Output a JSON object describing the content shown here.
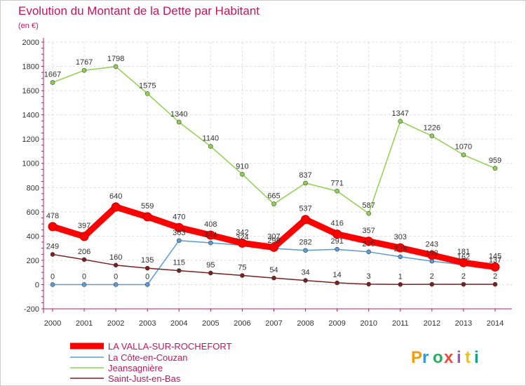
{
  "chart_data": {
    "type": "line",
    "title": "Evolution du Montant de la Dette par Habitant",
    "subtitle": "(en €)",
    "x": [
      "2000",
      "2001",
      "2002",
      "2003",
      "2004",
      "2005",
      "2006",
      "2007",
      "2008",
      "2009",
      "2010",
      "2011",
      "2012",
      "2013",
      "2014"
    ],
    "yticks": [
      "-200",
      "0",
      "200",
      "400",
      "600",
      "800",
      "1000",
      "1200",
      "1400",
      "1600",
      "1800",
      "2000"
    ],
    "ylim": [
      -200,
      2000
    ],
    "grid": true,
    "legend_position": "bottom-left",
    "series": [
      {
        "name": "LA VALLA-SUR-ROCHEFORT",
        "color": "#ff0000",
        "values": [
          478,
          397,
          640,
          559,
          470,
          408,
          342,
          307,
          537,
          416,
          357,
          303,
          243,
          181,
          145
        ]
      },
      {
        "name": "La Côte-en-Couzan",
        "color": "#5b9bd5",
        "values": [
          0,
          0,
          0,
          0,
          363,
          344,
          324,
          298,
          282,
          291,
          270,
          229,
          193,
          162,
          137
        ]
      },
      {
        "name": "Jeansagnière",
        "color": "#8fd14f",
        "values": [
          1667,
          1767,
          1798,
          1575,
          1340,
          1140,
          910,
          665,
          837,
          771,
          587,
          1347,
          1226,
          1070,
          959
        ]
      },
      {
        "name": "Saint-Just-en-Bas",
        "color": "#7a1f1f",
        "values": [
          249,
          206,
          160,
          135,
          115,
          95,
          75,
          54,
          34,
          14,
          3,
          1,
          2,
          2,
          2
        ]
      }
    ],
    "data_labels": {
      "LA VALLA-SUR-ROCHEFORT": [
        "478",
        "397",
        "640",
        "559",
        "470",
        "408",
        "342",
        "307",
        "537",
        "416",
        "357",
        "303",
        "243",
        "181",
        "145"
      ],
      "La Côte-en-Couzan": [
        "0",
        "0",
        "0",
        "0",
        "363",
        "344",
        "324",
        "298",
        "282",
        "291",
        "270",
        "229",
        "193",
        "162",
        "137"
      ],
      "Jeansagnière": [
        "1667",
        "1767",
        "1798",
        "1575",
        "1340",
        "1140",
        "910",
        "665",
        "837",
        "771",
        "587",
        "1347",
        "1226",
        "1070",
        "959"
      ],
      "Saint-Just-en-Bas": [
        "249",
        "206",
        "160",
        "135",
        "115",
        "95",
        "75",
        "54",
        "34",
        "14",
        "3",
        "1",
        "2",
        "2",
        "2"
      ]
    }
  },
  "brand": {
    "text": "Proxiti",
    "letters": [
      "P",
      "r",
      "o",
      "x",
      "i",
      "t",
      "i"
    ],
    "colors": [
      "#f39c12",
      "#3498db",
      "#27ae60",
      "#e74c3c",
      "#9b59b6",
      "#f1c40f",
      "#16a085"
    ]
  }
}
